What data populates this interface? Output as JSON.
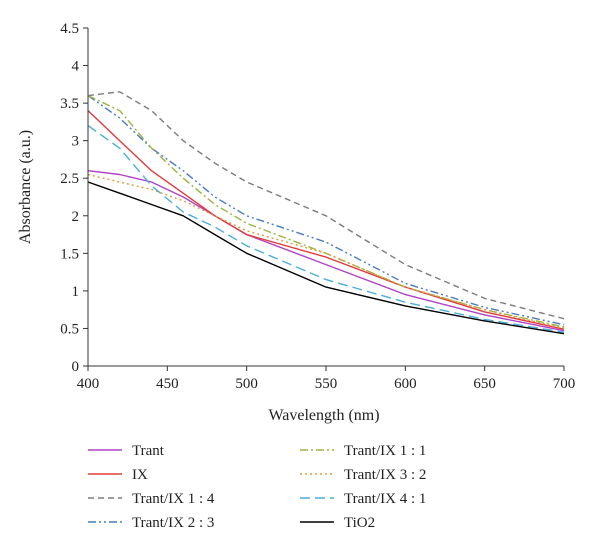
{
  "chart_data": {
    "type": "line",
    "title": "",
    "xlabel": "Wavelength (nm)",
    "ylabel": "Absorbance (a.u.)",
    "xlim": [
      400,
      700
    ],
    "ylim": [
      0,
      4.5
    ],
    "xticks": [
      "400",
      "450",
      "500",
      "550",
      "600",
      "650",
      "700"
    ],
    "yticks": [
      "0",
      "0.5",
      "1",
      "1.5",
      "2",
      "2.5",
      "3",
      "3.5",
      "4",
      "4.5"
    ],
    "grid": false,
    "legend_position": "bottom",
    "series": [
      {
        "name": "Trant",
        "color": "#b042c8",
        "dash": "solid",
        "x": [
          400,
          420,
          440,
          460,
          480,
          500,
          550,
          600,
          650,
          700
        ],
        "y": [
          2.6,
          2.55,
          2.45,
          2.25,
          2.0,
          1.75,
          1.35,
          0.95,
          0.68,
          0.47
        ]
      },
      {
        "name": "IX",
        "color": "#e23a3a",
        "dash": "solid",
        "x": [
          400,
          420,
          440,
          460,
          480,
          500,
          550,
          600,
          650,
          700
        ],
        "y": [
          3.4,
          3.0,
          2.6,
          2.3,
          2.0,
          1.75,
          1.45,
          1.05,
          0.72,
          0.49
        ]
      },
      {
        "name": "Trant/IX 1 : 4",
        "color": "#7b7b7b",
        "dash": "6,4",
        "x": [
          400,
          420,
          440,
          460,
          480,
          500,
          550,
          600,
          650,
          700
        ],
        "y": [
          3.6,
          3.65,
          3.4,
          3.0,
          2.7,
          2.45,
          2.0,
          1.35,
          0.9,
          0.63
        ]
      },
      {
        "name": "Trant/IX 2 : 3",
        "color": "#4a7cc0",
        "dash": "8,3,2,3,2,3",
        "x": [
          400,
          420,
          440,
          460,
          480,
          500,
          550,
          600,
          650,
          700
        ],
        "y": [
          3.6,
          3.3,
          2.9,
          2.6,
          2.25,
          2.0,
          1.65,
          1.1,
          0.78,
          0.55
        ]
      },
      {
        "name": "Trant/IX 1 : 1",
        "color": "#9bb542",
        "dash": "8,3,2,3",
        "x": [
          400,
          420,
          440,
          460,
          480,
          500,
          550,
          600,
          650,
          700
        ],
        "y": [
          3.6,
          3.4,
          2.9,
          2.5,
          2.15,
          1.9,
          1.5,
          1.05,
          0.75,
          0.52
        ]
      },
      {
        "name": "Trant/IX 3 : 2",
        "color": "#e09a3c",
        "dash": "2,3",
        "x": [
          400,
          420,
          440,
          460,
          480,
          500,
          550,
          600,
          650,
          700
        ],
        "y": [
          2.55,
          2.45,
          2.35,
          2.2,
          2.0,
          1.8,
          1.5,
          1.05,
          0.75,
          0.5
        ]
      },
      {
        "name": "Trant/IX 4 : 1",
        "color": "#4aaed8",
        "dash": "10,5",
        "x": [
          400,
          420,
          440,
          460,
          480,
          500,
          550,
          600,
          650,
          700
        ],
        "y": [
          3.2,
          2.9,
          2.4,
          2.05,
          1.85,
          1.6,
          1.15,
          0.85,
          0.62,
          0.45
        ]
      },
      {
        "name": "TiO2",
        "color": "#000000",
        "dash": "solid",
        "x": [
          400,
          420,
          440,
          460,
          480,
          500,
          550,
          600,
          650,
          700
        ],
        "y": [
          2.45,
          2.3,
          2.15,
          2.0,
          1.75,
          1.5,
          1.05,
          0.8,
          0.6,
          0.43
        ]
      }
    ]
  }
}
